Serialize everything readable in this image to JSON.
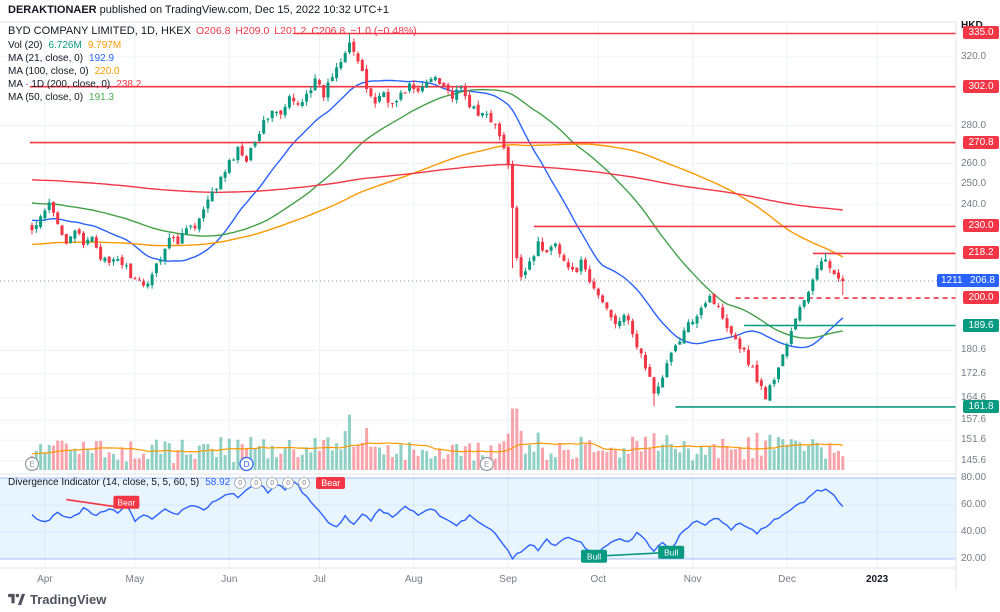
{
  "header": {
    "publisher": "DERAKTIONAER",
    "rest": " published on TradingView.com, Dec 15, 2022 10:32 UTC+1"
  },
  "legend": {
    "symbol": "BYD COMPANY LIMITED, 1D, HKEX",
    "open": "O206.8",
    "high": "H209.0",
    "low": "L201.2",
    "close": "C206.8",
    "change": "−1.0 (−0.48%)",
    "rows": [
      {
        "name": "volume",
        "label": "Vol (20)",
        "values": [
          {
            "text": "6.726M",
            "color": "#089981"
          },
          {
            "text": "9.797M",
            "color": "#ff9800"
          }
        ]
      },
      {
        "name": "ma21",
        "label": "MA (21, close, 0)",
        "values": [
          {
            "text": "192.9",
            "color": "#2962ff"
          }
        ]
      },
      {
        "name": "ma100",
        "label": "MA (100, close, 0)",
        "values": [
          {
            "text": "220.0",
            "color": "#ff9800"
          }
        ]
      },
      {
        "name": "ma200",
        "label": "MA · 1D (200, close, 0)",
        "values": [
          {
            "text": "238.2",
            "color": "#f23645"
          }
        ]
      },
      {
        "name": "ma50",
        "label": "MA (50, close, 0)",
        "values": [
          {
            "text": "191.3",
            "color": "#4caf50"
          }
        ]
      }
    ]
  },
  "oscillator_legend": {
    "label": "Divergence Indicator (14, close, 5, 5, 60, 5)",
    "value": "58.92",
    "zeros": [
      "0",
      "0",
      "0",
      "0",
      "0"
    ],
    "signal": "Bear"
  },
  "price_axis": {
    "currency": "HKD",
    "plain_labels": [
      320.0,
      280.0,
      260.0,
      250.0,
      240.0,
      180.6,
      172.6,
      164.6,
      157.6,
      151.6,
      145.6
    ],
    "badges": [
      {
        "text": "335.0",
        "bg": "#f23645",
        "price": 335.0
      },
      {
        "text": "302.0",
        "bg": "#f23645",
        "price": 302.0
      },
      {
        "text": "270.8",
        "bg": "#f23645",
        "price": 270.8
      },
      {
        "text": "230.0",
        "bg": "#f23645",
        "price": 230.0
      },
      {
        "text": "218.2",
        "bg": "#f23645",
        "price": 218.2
      },
      {
        "text": "206.8",
        "prefix": "1211",
        "bg": "#2962ff",
        "price": 206.8
      },
      {
        "text": "200.0",
        "bg": "#f23645",
        "price": 200.0
      },
      {
        "text": "189.6",
        "bg": "#089981",
        "price": 189.6
      },
      {
        "text": "161.8",
        "bg": "#089981",
        "price": 161.8
      }
    ]
  },
  "osc_axis": {
    "values": [
      80,
      60,
      40,
      20
    ]
  },
  "time_axis": {
    "labels": [
      {
        "text": "Apr",
        "day": 3
      },
      {
        "text": "May",
        "day": 24
      },
      {
        "text": "Jun",
        "day": 46
      },
      {
        "text": "Jul",
        "day": 67
      },
      {
        "text": "Aug",
        "day": 89
      },
      {
        "text": "Sep",
        "day": 111
      },
      {
        "text": "Oct",
        "day": 132
      },
      {
        "text": "Nov",
        "day": 154
      },
      {
        "text": "Dec",
        "day": 176
      },
      {
        "text": "2023",
        "day": 197,
        "bold": true
      }
    ]
  },
  "footer": {
    "brand": "TradingView"
  },
  "chart_data": {
    "type": "candlestick",
    "symbol": "BYD COMPANY LIMITED",
    "interval": "1D",
    "exchange": "HKEX",
    "currency": "HKD",
    "scale": "log",
    "days": 190,
    "last_bar": {
      "open": 206.8,
      "high": 209.0,
      "low": 201.2,
      "close": 206.8,
      "change": -1.0,
      "change_pct": -0.48
    },
    "indicator_values": {
      "vol": "6.726M",
      "vol_ma": "9.797M",
      "ma21": 192.9,
      "ma50": 191.3,
      "ma100": 220.0,
      "ma200": 238.2
    },
    "price_path": [
      [
        0,
        228
      ],
      [
        2,
        233
      ],
      [
        4,
        240
      ],
      [
        6,
        231
      ],
      [
        8,
        224
      ],
      [
        10,
        229
      ],
      [
        12,
        221
      ],
      [
        14,
        226
      ],
      [
        16,
        217
      ],
      [
        18,
        213
      ],
      [
        20,
        216
      ],
      [
        22,
        212
      ],
      [
        24,
        207
      ],
      [
        26,
        204
      ],
      [
        28,
        210
      ],
      [
        30,
        217
      ],
      [
        32,
        225
      ],
      [
        34,
        223
      ],
      [
        36,
        231
      ],
      [
        38,
        229
      ],
      [
        40,
        237
      ],
      [
        42,
        245
      ],
      [
        44,
        252
      ],
      [
        46,
        260
      ],
      [
        48,
        267
      ],
      [
        50,
        263
      ],
      [
        52,
        273
      ],
      [
        54,
        281
      ],
      [
        56,
        289
      ],
      [
        58,
        285
      ],
      [
        60,
        295
      ],
      [
        62,
        291
      ],
      [
        64,
        299
      ],
      [
        66,
        305
      ],
      [
        68,
        297
      ],
      [
        70,
        309
      ],
      [
        72,
        319
      ],
      [
        74,
        331
      ],
      [
        76,
        317
      ],
      [
        78,
        301
      ],
      [
        80,
        293
      ],
      [
        82,
        299
      ],
      [
        84,
        291
      ],
      [
        86,
        297
      ],
      [
        88,
        303
      ],
      [
        90,
        298
      ],
      [
        92,
        305
      ],
      [
        94,
        309
      ],
      [
        96,
        303
      ],
      [
        98,
        296
      ],
      [
        100,
        300
      ],
      [
        102,
        292
      ],
      [
        104,
        285
      ],
      [
        106,
        288
      ],
      [
        108,
        279
      ],
      [
        110,
        268
      ],
      [
        111,
        258
      ],
      [
        112,
        238
      ],
      [
        113,
        215
      ],
      [
        114,
        209
      ],
      [
        116,
        215
      ],
      [
        118,
        222
      ],
      [
        120,
        218
      ],
      [
        122,
        224
      ],
      [
        124,
        215
      ],
      [
        126,
        210
      ],
      [
        128,
        214
      ],
      [
        130,
        206
      ],
      [
        132,
        201
      ],
      [
        134,
        196
      ],
      [
        136,
        191
      ],
      [
        138,
        194
      ],
      [
        140,
        186
      ],
      [
        142,
        179
      ],
      [
        144,
        171
      ],
      [
        145,
        165
      ],
      [
        146,
        169
      ],
      [
        148,
        176
      ],
      [
        150,
        182
      ],
      [
        152,
        187
      ],
      [
        154,
        192
      ],
      [
        156,
        197
      ],
      [
        158,
        201
      ],
      [
        160,
        196
      ],
      [
        162,
        190
      ],
      [
        164,
        185
      ],
      [
        166,
        180
      ],
      [
        168,
        174
      ],
      [
        170,
        168
      ],
      [
        171,
        165
      ],
      [
        173,
        171
      ],
      [
        175,
        179
      ],
      [
        177,
        187
      ],
      [
        179,
        196
      ],
      [
        181,
        203
      ],
      [
        183,
        211
      ],
      [
        185,
        216
      ],
      [
        187,
        211
      ],
      [
        188,
        207.8
      ],
      [
        189,
        206.8
      ]
    ],
    "levels": [
      {
        "price": 335.0,
        "style": "solid",
        "color": "#f23645",
        "from_day": 61
      },
      {
        "price": 302.0,
        "style": "solid",
        "color": "#f23645",
        "from_day": -0.5
      },
      {
        "price": 270.8,
        "style": "solid",
        "color": "#f23645",
        "from_day": -0.5
      },
      {
        "price": 230.0,
        "style": "solid",
        "color": "#f23645",
        "from_day": 117
      },
      {
        "price": 218.2,
        "style": "solid",
        "color": "#f23645",
        "from_day": 182
      },
      {
        "price": 200.0,
        "style": "dashed",
        "color": "#f23645",
        "from_day": 164
      },
      {
        "price": 189.6,
        "style": "solid",
        "color": "#089981",
        "from_day": 166
      },
      {
        "price": 161.8,
        "style": "solid",
        "color": "#089981",
        "from_day": 150
      }
    ],
    "last_price_line": {
      "price": 206.8,
      "style": "dotted",
      "color": "#7f8fa3"
    },
    "markers": [
      {
        "day": 0,
        "label": "E",
        "color": "#9598a1"
      },
      {
        "day": 50,
        "label": "D",
        "color": "#2962ff"
      },
      {
        "day": 106,
        "label": "E",
        "color": "#9598a1"
      }
    ],
    "moving_averages": [
      {
        "window": 21,
        "color": "#2962ff",
        "seed": 233
      },
      {
        "window": 50,
        "color": "#43a047",
        "seed": 241
      },
      {
        "window": 100,
        "color": "#ff9800",
        "seed": 222
      },
      {
        "window": 200,
        "color": "#f23645",
        "seed": 252
      }
    ],
    "volume_ma": {
      "window": 20,
      "color": "#ff9800",
      "seed": 8
    },
    "oscillator": {
      "name": "Divergence Indicator",
      "params": "14, close, 5, 5, 60, 5",
      "last": 58.92,
      "band": [
        20,
        80
      ],
      "points": [
        [
          0,
          52
        ],
        [
          3,
          47
        ],
        [
          6,
          54
        ],
        [
          9,
          50
        ],
        [
          12,
          57
        ],
        [
          15,
          53
        ],
        [
          18,
          58
        ],
        [
          20,
          55
        ],
        [
          22,
          60
        ],
        [
          24,
          48
        ],
        [
          26,
          53
        ],
        [
          28,
          50
        ],
        [
          31,
          57
        ],
        [
          34,
          53
        ],
        [
          37,
          60
        ],
        [
          40,
          57
        ],
        [
          43,
          64
        ],
        [
          46,
          69
        ],
        [
          48,
          66
        ],
        [
          50,
          71
        ],
        [
          53,
          75
        ],
        [
          55,
          70
        ],
        [
          57,
          76
        ],
        [
          59,
          72
        ],
        [
          61,
          78
        ],
        [
          63,
          70
        ],
        [
          65,
          62
        ],
        [
          67,
          55
        ],
        [
          69,
          47
        ],
        [
          71,
          44
        ],
        [
          73,
          52
        ],
        [
          75,
          46
        ],
        [
          77,
          54
        ],
        [
          79,
          49
        ],
        [
          81,
          56
        ],
        [
          84,
          51
        ],
        [
          87,
          58
        ],
        [
          90,
          53
        ],
        [
          93,
          58
        ],
        [
          96,
          50
        ],
        [
          99,
          45
        ],
        [
          102,
          52
        ],
        [
          105,
          46
        ],
        [
          108,
          39
        ],
        [
          110,
          30
        ],
        [
          112,
          21
        ],
        [
          114,
          25
        ],
        [
          116,
          31
        ],
        [
          118,
          27
        ],
        [
          120,
          34
        ],
        [
          122,
          30
        ],
        [
          125,
          37
        ],
        [
          128,
          32
        ],
        [
          131,
          22
        ],
        [
          134,
          30
        ],
        [
          137,
          36
        ],
        [
          139,
          32
        ],
        [
          141,
          39
        ],
        [
          143,
          34
        ],
        [
          145,
          26
        ],
        [
          147,
          33
        ],
        [
          149,
          27
        ],
        [
          151,
          38
        ],
        [
          153,
          44
        ],
        [
          155,
          49
        ],
        [
          157,
          45
        ],
        [
          159,
          51
        ],
        [
          161,
          47
        ],
        [
          163,
          42
        ],
        [
          165,
          47
        ],
        [
          167,
          43
        ],
        [
          169,
          39
        ],
        [
          171,
          44
        ],
        [
          173,
          49
        ],
        [
          175,
          53
        ],
        [
          177,
          57
        ],
        [
          179,
          61
        ],
        [
          181,
          65
        ],
        [
          183,
          70
        ],
        [
          185,
          72
        ],
        [
          186,
          69
        ],
        [
          187,
          66
        ],
        [
          188,
          62
        ],
        [
          189,
          58.92
        ]
      ],
      "annotations": [
        {
          "kind": "line",
          "color": "#f23645",
          "from": [
            8,
            64
          ],
          "to": [
            21,
            58
          ]
        },
        {
          "kind": "badge",
          "text": "Bear",
          "color": "#f23645",
          "day": 22,
          "value": 62
        },
        {
          "kind": "line",
          "color": "#089981",
          "from": [
            131,
            22
          ],
          "to": [
            149,
            25
          ]
        },
        {
          "kind": "badge",
          "text": "Bull",
          "color": "#089981",
          "day": 131,
          "value": 22
        },
        {
          "kind": "badge",
          "text": "Bull",
          "color": "#089981",
          "day": 149,
          "value": 25
        }
      ]
    }
  }
}
